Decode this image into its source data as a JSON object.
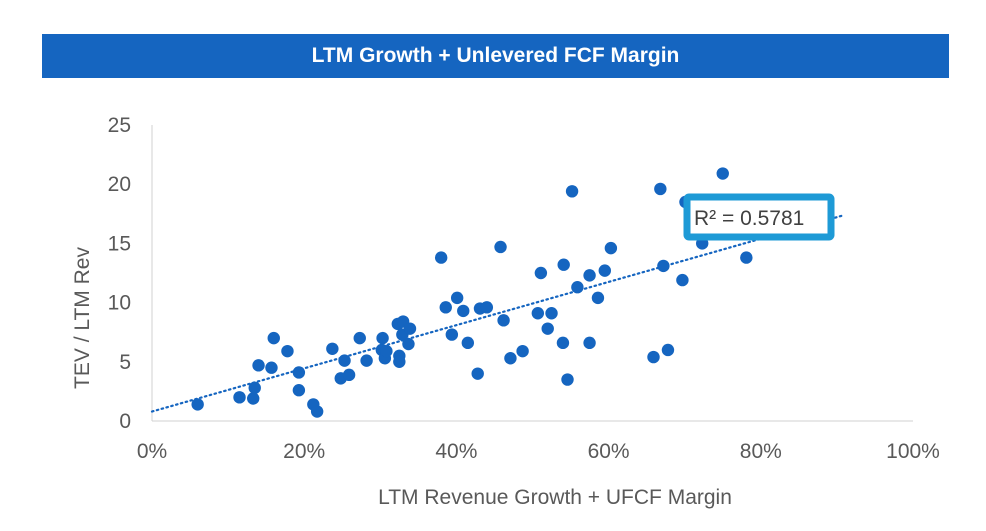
{
  "chart_data": {
    "type": "scatter",
    "title": "LTM Growth + Unlevered FCF Margin",
    "xlabel": "LTM Revenue Growth + UFCF Margin",
    "ylabel": "TEV / LTM Rev",
    "xlim": [
      0,
      100
    ],
    "ylim": [
      0,
      25
    ],
    "x_ticks": [
      0,
      20,
      40,
      60,
      80,
      100
    ],
    "x_tick_labels": [
      "0%",
      "20%",
      "40%",
      "60%",
      "80%",
      "100%"
    ],
    "y_ticks": [
      0,
      5,
      10,
      15,
      20,
      25
    ],
    "y_tick_labels": [
      "0",
      "5",
      "10",
      "15",
      "20",
      "25"
    ],
    "grid": false,
    "legend": "none",
    "marker_color": "#1565C0",
    "trendline": {
      "type": "linear",
      "style": "dotted",
      "x": [
        0,
        91
      ],
      "y": [
        0.8,
        17.4
      ],
      "r2_label": "R² = 0.5781"
    },
    "points": [
      {
        "x": 6,
        "y": 1.4
      },
      {
        "x": 11.5,
        "y": 2.0
      },
      {
        "x": 13.3,
        "y": 1.9
      },
      {
        "x": 13.5,
        "y": 2.8
      },
      {
        "x": 14.0,
        "y": 4.7
      },
      {
        "x": 15.7,
        "y": 4.5
      },
      {
        "x": 16.0,
        "y": 7.0
      },
      {
        "x": 17.8,
        "y": 5.9
      },
      {
        "x": 19.3,
        "y": 4.1
      },
      {
        "x": 19.3,
        "y": 2.6
      },
      {
        "x": 21.2,
        "y": 1.4
      },
      {
        "x": 21.7,
        "y": 0.8
      },
      {
        "x": 23.7,
        "y": 6.1
      },
      {
        "x": 24.8,
        "y": 3.6
      },
      {
        "x": 25.3,
        "y": 5.1
      },
      {
        "x": 25.9,
        "y": 3.9
      },
      {
        "x": 27.3,
        "y": 7.0
      },
      {
        "x": 28.2,
        "y": 5.1
      },
      {
        "x": 30.2,
        "y": 6.0
      },
      {
        "x": 30.3,
        "y": 7.0
      },
      {
        "x": 30.6,
        "y": 5.3
      },
      {
        "x": 30.8,
        "y": 5.9
      },
      {
        "x": 32.3,
        "y": 8.2
      },
      {
        "x": 32.5,
        "y": 5.5
      },
      {
        "x": 32.5,
        "y": 5.0
      },
      {
        "x": 32.9,
        "y": 7.3
      },
      {
        "x": 33.0,
        "y": 8.4
      },
      {
        "x": 33.7,
        "y": 6.5
      },
      {
        "x": 33.9,
        "y": 7.8
      },
      {
        "x": 38.0,
        "y": 13.8
      },
      {
        "x": 38.6,
        "y": 9.6
      },
      {
        "x": 39.4,
        "y": 7.3
      },
      {
        "x": 40.1,
        "y": 10.4
      },
      {
        "x": 40.9,
        "y": 9.3
      },
      {
        "x": 41.5,
        "y": 6.6
      },
      {
        "x": 42.8,
        "y": 4.0
      },
      {
        "x": 43.1,
        "y": 9.5
      },
      {
        "x": 44.0,
        "y": 9.6
      },
      {
        "x": 45.8,
        "y": 14.7
      },
      {
        "x": 46.2,
        "y": 8.5
      },
      {
        "x": 47.1,
        "y": 5.3
      },
      {
        "x": 48.7,
        "y": 5.9
      },
      {
        "x": 50.7,
        "y": 9.1
      },
      {
        "x": 51.1,
        "y": 12.5
      },
      {
        "x": 52.0,
        "y": 7.8
      },
      {
        "x": 52.5,
        "y": 9.1
      },
      {
        "x": 54.0,
        "y": 6.6
      },
      {
        "x": 54.1,
        "y": 13.2
      },
      {
        "x": 54.6,
        "y": 3.5
      },
      {
        "x": 55.2,
        "y": 19.4
      },
      {
        "x": 55.9,
        "y": 11.3
      },
      {
        "x": 57.5,
        "y": 12.3
      },
      {
        "x": 57.5,
        "y": 6.6
      },
      {
        "x": 58.6,
        "y": 10.4
      },
      {
        "x": 59.5,
        "y": 12.7
      },
      {
        "x": 60.3,
        "y": 14.6
      },
      {
        "x": 65.9,
        "y": 5.4
      },
      {
        "x": 66.8,
        "y": 19.6
      },
      {
        "x": 67.2,
        "y": 13.1
      },
      {
        "x": 67.8,
        "y": 6.0
      },
      {
        "x": 69.7,
        "y": 11.9
      },
      {
        "x": 70.1,
        "y": 18.5
      },
      {
        "x": 72.3,
        "y": 15.0
      },
      {
        "x": 75.0,
        "y": 20.9
      },
      {
        "x": 78.1,
        "y": 13.8
      }
    ]
  }
}
